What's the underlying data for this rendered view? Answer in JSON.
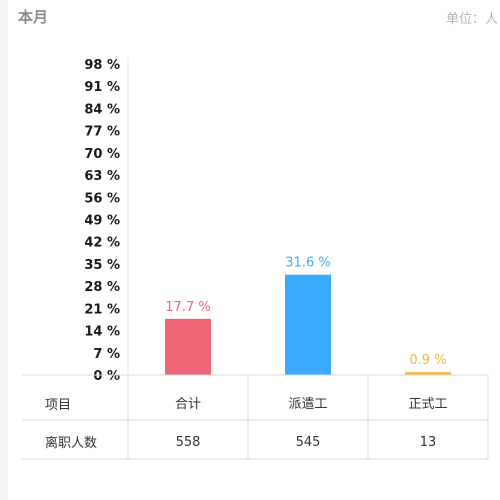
{
  "header": {
    "title": "本月",
    "unit": "单位：人"
  },
  "colors": {
    "total": "#ee6677",
    "dispatch": "#3aabff",
    "formal": "#f5b342"
  },
  "chart_data": {
    "type": "bar",
    "categories": [
      "合计",
      "派遣工",
      "正式工"
    ],
    "values": [
      17.7,
      31.6,
      0.9
    ],
    "value_labels": [
      "17.7 %",
      "31.6 %",
      "0.9 %"
    ],
    "ylim": [
      0,
      98
    ],
    "y_ticks": [
      0,
      7,
      14,
      21,
      28,
      35,
      42,
      49,
      56,
      63,
      70,
      77,
      84,
      91,
      98
    ],
    "y_tick_labels": [
      "0 %",
      "7 %",
      "14 %",
      "21 %",
      "28 %",
      "35 %",
      "42 %",
      "49 %",
      "56 %",
      "63 %",
      "70 %",
      "77 %",
      "84 %",
      "91 %",
      "98 %"
    ],
    "grid": false,
    "bar_colors": [
      "#ee6677",
      "#3aabff",
      "#f5b342"
    ]
  },
  "table": {
    "header_label": "项目",
    "row_label": "离职人数",
    "columns": [
      "合计",
      "派遣工",
      "正式工"
    ],
    "values": [
      "558",
      "545",
      "13"
    ]
  }
}
